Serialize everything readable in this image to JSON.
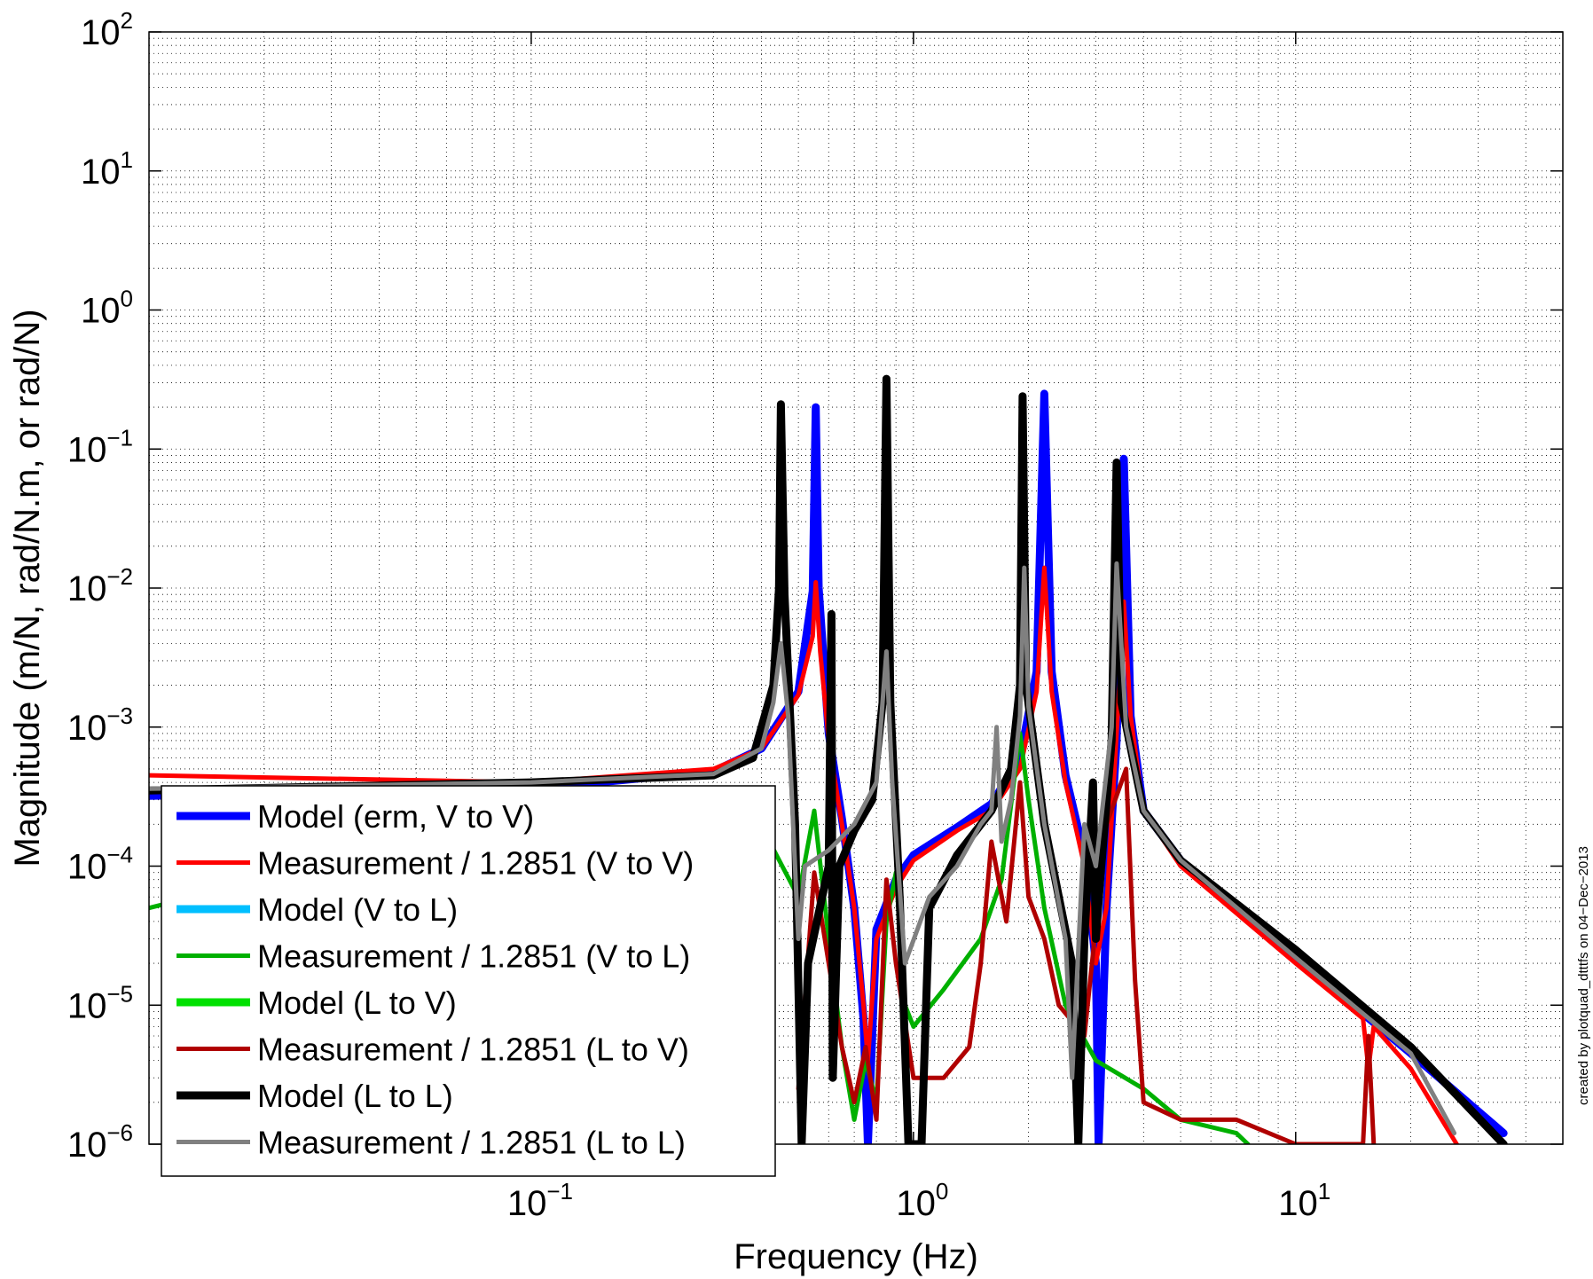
{
  "chart_data": {
    "type": "line",
    "title": "",
    "xlabel": "Frequency (Hz)",
    "ylabel": "Magnitude (m/N, rad/N.m, or rad/N)",
    "xscale": "log",
    "yscale": "log",
    "xlim": [
      0.01,
      50
    ],
    "ylim": [
      1e-06,
      100
    ],
    "grid": true,
    "legend_position": "bottom-left",
    "x_ticks": [
      {
        "value": 0.1,
        "base": "10",
        "exp": "−1"
      },
      {
        "value": 1,
        "base": "10",
        "exp": "0"
      },
      {
        "value": 10,
        "base": "10",
        "exp": "1"
      }
    ],
    "y_ticks": [
      {
        "value": 1e-06,
        "base": "10",
        "exp": "−6"
      },
      {
        "value": 1e-05,
        "base": "10",
        "exp": "−5"
      },
      {
        "value": 0.0001,
        "base": "10",
        "exp": "−4"
      },
      {
        "value": 0.001,
        "base": "10",
        "exp": "−3"
      },
      {
        "value": 0.01,
        "base": "10",
        "exp": "−2"
      },
      {
        "value": 0.1,
        "base": "10",
        "exp": "−1"
      },
      {
        "value": 1,
        "base": "10",
        "exp": "0"
      },
      {
        "value": 10,
        "base": "10",
        "exp": "1"
      },
      {
        "value": 100,
        "base": "10",
        "exp": "2"
      }
    ],
    "annotation": "created by plotquad_dtttfs on 04−Dec−2013",
    "series": [
      {
        "name": "Model (erm, V to V)",
        "color": "#0000ff",
        "width": 9,
        "points": [
          [
            0.01,
            0.00032
          ],
          [
            0.1,
            0.00036
          ],
          [
            0.3,
            0.00048
          ],
          [
            0.4,
            0.0007
          ],
          [
            0.5,
            0.0018
          ],
          [
            0.545,
            0.0095
          ],
          [
            0.555,
            0.2
          ],
          [
            0.565,
            0.01
          ],
          [
            0.6,
            0.0009
          ],
          [
            0.65,
            0.00022
          ],
          [
            0.7,
            5e-05
          ],
          [
            0.74,
            8e-06
          ],
          [
            0.76,
            1e-06
          ],
          [
            0.8,
            3.5e-05
          ],
          [
            0.9,
            8e-05
          ],
          [
            1.0,
            0.00012
          ],
          [
            1.3,
            0.00019
          ],
          [
            1.6,
            0.00028
          ],
          [
            1.9,
            0.0006
          ],
          [
            2.1,
            0.0025
          ],
          [
            2.2,
            0.25
          ],
          [
            2.3,
            0.0025
          ],
          [
            2.5,
            0.00045
          ],
          [
            2.8,
            0.00012
          ],
          [
            3.0,
            2e-05
          ],
          [
            3.05,
            1e-06
          ],
          [
            3.2,
            5e-05
          ],
          [
            3.4,
            0.0008
          ],
          [
            3.55,
            0.085
          ],
          [
            3.7,
            0.0012
          ],
          [
            4.0,
            0.00025
          ],
          [
            5.0,
            0.00011
          ],
          [
            10.0,
            2.2e-05
          ],
          [
            20.0,
            4.5e-06
          ],
          [
            35.0,
            1.2e-06
          ]
        ]
      },
      {
        "name": "Measurement / 1.2851 (V to V)",
        "color": "#ff0000",
        "width": 5,
        "points": [
          [
            0.01,
            0.00045
          ],
          [
            0.1,
            0.0004
          ],
          [
            0.3,
            0.0005
          ],
          [
            0.4,
            0.0007
          ],
          [
            0.5,
            0.0017
          ],
          [
            0.545,
            0.0045
          ],
          [
            0.555,
            0.011
          ],
          [
            0.57,
            0.0035
          ],
          [
            0.6,
            0.0008
          ],
          [
            0.65,
            0.0002
          ],
          [
            0.7,
            5e-05
          ],
          [
            0.74,
            1e-05
          ],
          [
            0.76,
            4e-06
          ],
          [
            0.8,
            3e-05
          ],
          [
            0.9,
            7e-05
          ],
          [
            1.0,
            0.00011
          ],
          [
            1.3,
            0.00018
          ],
          [
            1.6,
            0.00025
          ],
          [
            1.9,
            0.0005
          ],
          [
            2.1,
            0.0018
          ],
          [
            2.2,
            0.014
          ],
          [
            2.3,
            0.0018
          ],
          [
            2.5,
            0.0004
          ],
          [
            2.8,
            0.0001
          ],
          [
            3.0,
            2e-05
          ],
          [
            3.2,
            5e-05
          ],
          [
            3.4,
            0.0009
          ],
          [
            3.55,
            0.008
          ],
          [
            3.7,
            0.0012
          ],
          [
            4.0,
            0.00025
          ],
          [
            5.0,
            0.0001
          ],
          [
            10.0,
            2e-05
          ],
          [
            15.0,
            8e-06
          ],
          [
            15.5,
            3.5e-06
          ],
          [
            16.0,
            7e-06
          ],
          [
            20.0,
            3.5e-06
          ],
          [
            27.0,
            9e-07
          ]
        ]
      },
      {
        "name": "Model (V to L)",
        "color": "#00bfff",
        "width": 9,
        "points": []
      },
      {
        "name": "Measurement / 1.2851 (V to L)",
        "color": "#00b000",
        "width": 5,
        "points": [
          [
            0.01,
            5e-05
          ],
          [
            0.013,
            6e-05
          ],
          [
            0.2,
            6e-05
          ],
          [
            0.25,
            3e-06
          ],
          [
            0.3,
            0.0001
          ],
          [
            0.38,
            0.0002
          ],
          [
            0.42,
            0.00015
          ],
          [
            0.5,
            6e-05
          ],
          [
            0.55,
            0.00025
          ],
          [
            0.6,
            3e-05
          ],
          [
            0.65,
            5e-06
          ],
          [
            0.7,
            1.5e-06
          ],
          [
            0.75,
            4e-06
          ],
          [
            0.8,
            2e-06
          ],
          [
            0.85,
            4e-05
          ],
          [
            0.9,
            9e-05
          ],
          [
            0.95,
            1e-05
          ],
          [
            1.0,
            7e-06
          ],
          [
            1.2,
            1.3e-05
          ],
          [
            1.5,
            3e-05
          ],
          [
            1.7,
            8e-05
          ],
          [
            1.9,
            0.0009
          ],
          [
            2.0,
            0.0003
          ],
          [
            2.2,
            5e-05
          ],
          [
            2.5,
            1e-05
          ],
          [
            3.0,
            4e-06
          ],
          [
            4.0,
            2.5e-06
          ],
          [
            5.0,
            1.5e-06
          ],
          [
            7.0,
            1.2e-06
          ],
          [
            7.5,
            1e-06
          ]
        ]
      },
      {
        "name": "Model (L to V)",
        "color": "#00e000",
        "width": 9,
        "points": []
      },
      {
        "name": "Measurement / 1.2851 (L to V)",
        "color": "#b00000",
        "width": 5,
        "points": [
          [
            0.5,
            2.5e-06
          ],
          [
            0.55,
            9e-05
          ],
          [
            0.6,
            2e-05
          ],
          [
            0.65,
            5e-06
          ],
          [
            0.7,
            2e-06
          ],
          [
            0.75,
            5e-06
          ],
          [
            0.8,
            1.5e-06
          ],
          [
            0.85,
            8e-05
          ],
          [
            0.9,
            2e-05
          ],
          [
            1.0,
            3e-06
          ],
          [
            1.2,
            3e-06
          ],
          [
            1.4,
            5e-06
          ],
          [
            1.5,
            2e-05
          ],
          [
            1.6,
            0.00015
          ],
          [
            1.75,
            4e-05
          ],
          [
            1.9,
            0.0004
          ],
          [
            2.0,
            6e-05
          ],
          [
            2.2,
            3e-05
          ],
          [
            2.4,
            1e-05
          ],
          [
            2.8,
            6e-06
          ],
          [
            3.2,
            0.0002
          ],
          [
            3.6,
            0.0005
          ],
          [
            3.8,
            1.5e-05
          ],
          [
            4.0,
            2e-06
          ],
          [
            5.0,
            1.5e-06
          ],
          [
            7.0,
            1.5e-06
          ],
          [
            10.0,
            1e-06
          ],
          [
            15.0,
            1e-06
          ],
          [
            15.5,
            6e-06
          ],
          [
            16.0,
            1e-06
          ]
        ]
      },
      {
        "name": "Model (L to L)",
        "color": "#000000",
        "width": 9,
        "points": [
          [
            0.01,
            0.00035
          ],
          [
            0.1,
            0.0004
          ],
          [
            0.3,
            0.00045
          ],
          [
            0.38,
            0.0006
          ],
          [
            0.43,
            0.002
          ],
          [
            0.445,
            0.01
          ],
          [
            0.45,
            0.21
          ],
          [
            0.46,
            0.009
          ],
          [
            0.49,
            0.0002
          ],
          [
            0.51,
            1e-06
          ],
          [
            0.53,
            2e-05
          ],
          [
            0.6,
            0.0001
          ],
          [
            0.61,
            0.0065
          ],
          [
            0.615,
            3e-06
          ],
          [
            0.64,
            0.0001
          ],
          [
            0.7,
            0.00018
          ],
          [
            0.78,
            0.0003
          ],
          [
            0.83,
            0.0015
          ],
          [
            0.85,
            0.32
          ],
          [
            0.87,
            0.0015
          ],
          [
            0.92,
            6e-05
          ],
          [
            0.97,
            1e-06
          ],
          [
            1.05,
            1e-06
          ],
          [
            1.1,
            5e-05
          ],
          [
            1.3,
            0.00012
          ],
          [
            1.6,
            0.00025
          ],
          [
            1.8,
            0.0005
          ],
          [
            1.9,
            0.002
          ],
          [
            1.93,
            0.24
          ],
          [
            1.97,
            0.002
          ],
          [
            2.2,
            0.0002
          ],
          [
            2.6,
            2e-05
          ],
          [
            2.7,
            1e-06
          ],
          [
            2.8,
            3e-05
          ],
          [
            2.95,
            0.0004
          ],
          [
            3.0,
            3e-05
          ],
          [
            3.1,
            0.0001
          ],
          [
            3.3,
            0.0008
          ],
          [
            3.4,
            0.08
          ],
          [
            3.5,
            0.0015
          ],
          [
            4.0,
            0.00025
          ],
          [
            5.0,
            0.00011
          ],
          [
            10.0,
            2.5e-05
          ],
          [
            20.0,
            5e-06
          ],
          [
            35.0,
            1e-06
          ]
        ]
      },
      {
        "name": "Measurement / 1.2851 (L to L)",
        "color": "#808080",
        "width": 5,
        "points": [
          [
            0.01,
            0.00036
          ],
          [
            0.1,
            0.0004
          ],
          [
            0.3,
            0.00046
          ],
          [
            0.4,
            0.0007
          ],
          [
            0.43,
            0.0015
          ],
          [
            0.45,
            0.004
          ],
          [
            0.47,
            0.0012
          ],
          [
            0.5,
            3e-05
          ],
          [
            0.52,
            0.0001
          ],
          [
            0.6,
            0.00013
          ],
          [
            0.7,
            0.0002
          ],
          [
            0.8,
            0.0004
          ],
          [
            0.85,
            0.0035
          ],
          [
            0.88,
            0.0004
          ],
          [
            0.95,
            2e-05
          ],
          [
            1.1,
            6e-05
          ],
          [
            1.3,
            0.0001
          ],
          [
            1.5,
            0.0002
          ],
          [
            1.6,
            0.00025
          ],
          [
            1.65,
            0.001
          ],
          [
            1.7,
            0.00015
          ],
          [
            1.8,
            0.0003
          ],
          [
            1.9,
            0.0012
          ],
          [
            1.95,
            0.014
          ],
          [
            2.0,
            0.0014
          ],
          [
            2.2,
            0.0002
          ],
          [
            2.5,
            3e-05
          ],
          [
            2.6,
            3e-06
          ],
          [
            2.8,
            0.0002
          ],
          [
            3.0,
            0.0001
          ],
          [
            3.3,
            0.001
          ],
          [
            3.4,
            0.015
          ],
          [
            3.6,
            0.001
          ],
          [
            4.0,
            0.00025
          ],
          [
            5.0,
            0.00011
          ],
          [
            10.0,
            2.2e-05
          ],
          [
            20.0,
            4.5e-06
          ],
          [
            26.0,
            1.2e-06
          ]
        ]
      }
    ]
  }
}
